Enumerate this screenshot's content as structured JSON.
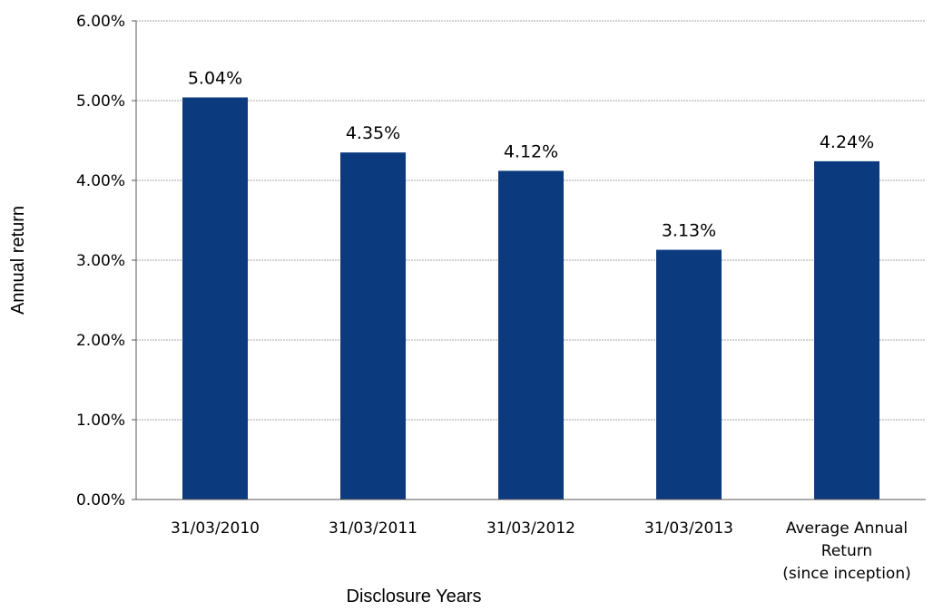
{
  "chart_data": {
    "type": "bar",
    "title": "",
    "xlabel": "Disclosure Years",
    "ylabel": "Annual return",
    "ylim": [
      0,
      6
    ],
    "yticks": [
      "0.00%",
      "1.00%",
      "2.00%",
      "3.00%",
      "4.00%",
      "5.00%",
      "6.00%"
    ],
    "grid": true,
    "categories": [
      [
        "31/03/2010"
      ],
      [
        "31/03/2011"
      ],
      [
        "31/03/2012"
      ],
      [
        "31/03/2013"
      ],
      [
        "Average Annual",
        "Return",
        "(since inception)"
      ]
    ],
    "values": [
      5.04,
      4.35,
      4.12,
      3.13,
      4.24
    ],
    "data_labels": [
      "5.04%",
      "4.35%",
      "4.12%",
      "3.13%",
      "4.24%"
    ],
    "colors": {
      "bar": "#0B3A7E",
      "grid": "#A6A6A6",
      "axis": "#595959"
    }
  }
}
